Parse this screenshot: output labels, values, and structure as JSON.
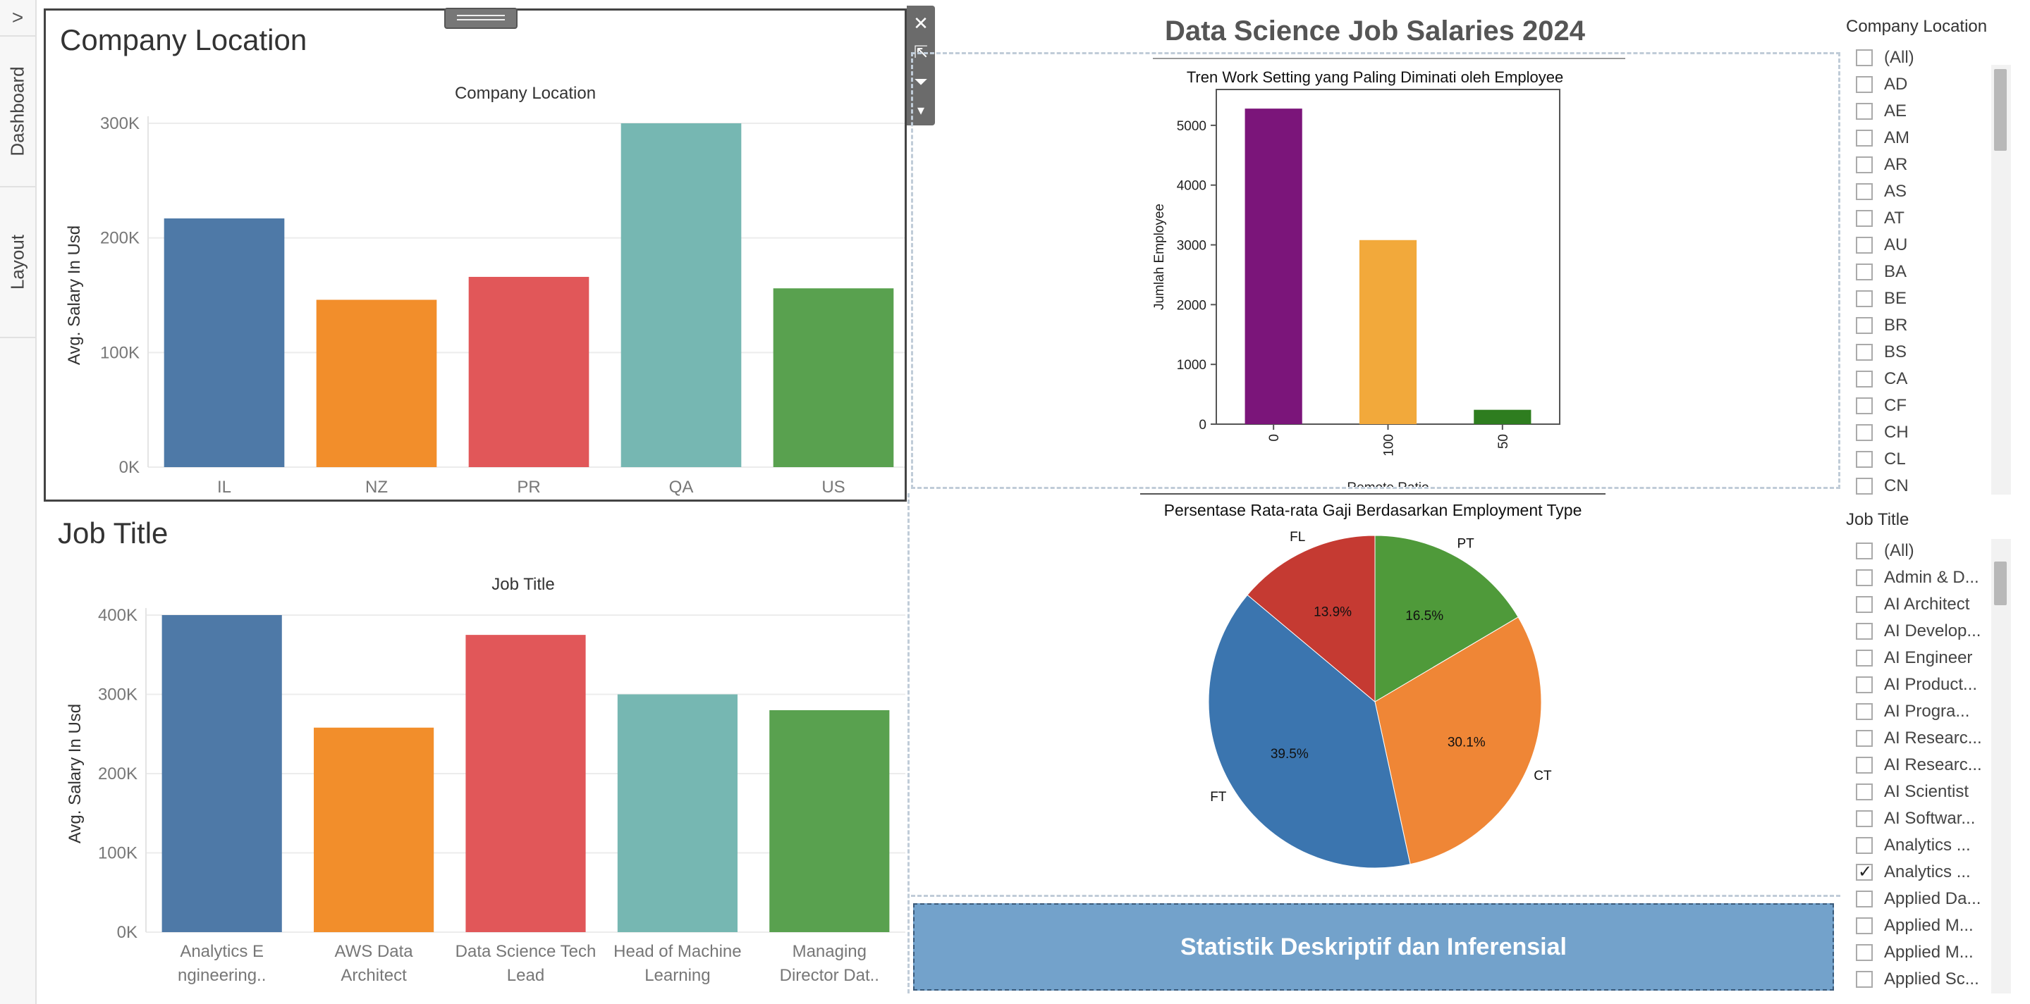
{
  "tabs": {
    "expand_glyph": ">",
    "dashboard": "Dashboard",
    "layout": "Layout"
  },
  "toolbar": {
    "close_glyph": "✕",
    "popout_glyph": "⇱",
    "filter_glyph": "⏷",
    "more_glyph": "▾"
  },
  "dashboard_title": "Data Science Job Salaries 2024",
  "company_panel": {
    "title": "Company Location"
  },
  "job_panel": {
    "title": "Job Title"
  },
  "stat_button": "Statistik Deskriptif dan Inferensial",
  "colors": {
    "blue": "#4e79a7",
    "orange": "#f28e2b",
    "red": "#e15759",
    "teal": "#76b7b2",
    "green": "#59a14f",
    "accent": "#73a2cb"
  },
  "chart_data": [
    {
      "type": "bar",
      "title": "Company Location",
      "categories": [
        "IL",
        "NZ",
        "PR",
        "QA",
        "US"
      ],
      "values": [
        217000,
        146000,
        166000,
        300000,
        156000
      ],
      "ylabel": "Avg. Salary In Usd",
      "yticks": [
        "0K",
        "100K",
        "200K",
        "300K"
      ],
      "ylim": [
        0,
        300000
      ],
      "grid": true
    },
    {
      "type": "bar",
      "title": "Job Title",
      "categories": [
        "Analytics E ngineering..",
        "AWS Data Architect",
        "Data Science Tech Lead",
        "Head of Machine Learning",
        "Managing Director Dat.."
      ],
      "category_lines": [
        [
          "Analytics E",
          "ngineering.."
        ],
        [
          "AWS Data",
          "Architect"
        ],
        [
          "Data Science Tech",
          "Lead"
        ],
        [
          "Head of Machine",
          "Learning"
        ],
        [
          "Managing",
          "Director Dat.."
        ]
      ],
      "values": [
        400000,
        258000,
        375000,
        300000,
        280000
      ],
      "ylabel": "Avg. Salary In Usd",
      "yticks": [
        "0K",
        "100K",
        "200K",
        "300K",
        "400K"
      ],
      "ylim": [
        0,
        400000
      ],
      "grid": true
    },
    {
      "type": "bar",
      "title": "Tren Work Setting yang Paling Diminati oleh Employee",
      "categories": [
        "0",
        "100",
        "50"
      ],
      "values": [
        5280,
        3080,
        240
      ],
      "colors": [
        "#7b157a",
        "#f2a93b",
        "#2e7d1f"
      ],
      "xlabel": "Remote Ratio",
      "ylabel": "Jumlah Employee",
      "yticks": [
        "0",
        "1000",
        "2000",
        "3000",
        "4000",
        "5000"
      ],
      "ylim": [
        0,
        5600
      ]
    },
    {
      "type": "pie",
      "title": "Persentase Rata-rata Gaji Berdasarkan Employment Type",
      "labels": [
        "PT",
        "CT",
        "FT",
        "FL"
      ],
      "percent_labels": [
        "16.5%",
        "30.1%",
        "39.5%",
        "13.9%"
      ],
      "values": [
        16.5,
        30.1,
        39.5,
        13.9
      ],
      "colors": [
        "#4f9a3a",
        "#ef8636",
        "#3b75af",
        "#c53a32"
      ]
    }
  ],
  "filters": {
    "company": {
      "title": "Company Location",
      "items": [
        {
          "label": "(All)",
          "checked": false
        },
        {
          "label": "AD",
          "checked": false
        },
        {
          "label": "AE",
          "checked": false
        },
        {
          "label": "AM",
          "checked": false
        },
        {
          "label": "AR",
          "checked": false
        },
        {
          "label": "AS",
          "checked": false
        },
        {
          "label": "AT",
          "checked": false
        },
        {
          "label": "AU",
          "checked": false
        },
        {
          "label": "BA",
          "checked": false
        },
        {
          "label": "BE",
          "checked": false
        },
        {
          "label": "BR",
          "checked": false
        },
        {
          "label": "BS",
          "checked": false
        },
        {
          "label": "CA",
          "checked": false
        },
        {
          "label": "CF",
          "checked": false
        },
        {
          "label": "CH",
          "checked": false
        },
        {
          "label": "CL",
          "checked": false
        },
        {
          "label": "CN",
          "checked": false
        }
      ]
    },
    "job": {
      "title": "Job Title",
      "items": [
        {
          "label": "(All)",
          "checked": false
        },
        {
          "label": "Admin & D...",
          "checked": false
        },
        {
          "label": "AI Architect",
          "checked": false
        },
        {
          "label": "AI Develop...",
          "checked": false
        },
        {
          "label": "AI Engineer",
          "checked": false
        },
        {
          "label": "AI Product...",
          "checked": false
        },
        {
          "label": "AI Progra...",
          "checked": false
        },
        {
          "label": "AI Researc...",
          "checked": false
        },
        {
          "label": "AI Researc...",
          "checked": false
        },
        {
          "label": "AI Scientist",
          "checked": false
        },
        {
          "label": "AI Softwar...",
          "checked": false
        },
        {
          "label": "Analytics ...",
          "checked": false
        },
        {
          "label": "Analytics ...",
          "checked": true
        },
        {
          "label": "Applied Da...",
          "checked": false
        },
        {
          "label": "Applied M...",
          "checked": false
        },
        {
          "label": "Applied M...",
          "checked": false
        },
        {
          "label": "Applied Sc...",
          "checked": false
        }
      ]
    }
  }
}
